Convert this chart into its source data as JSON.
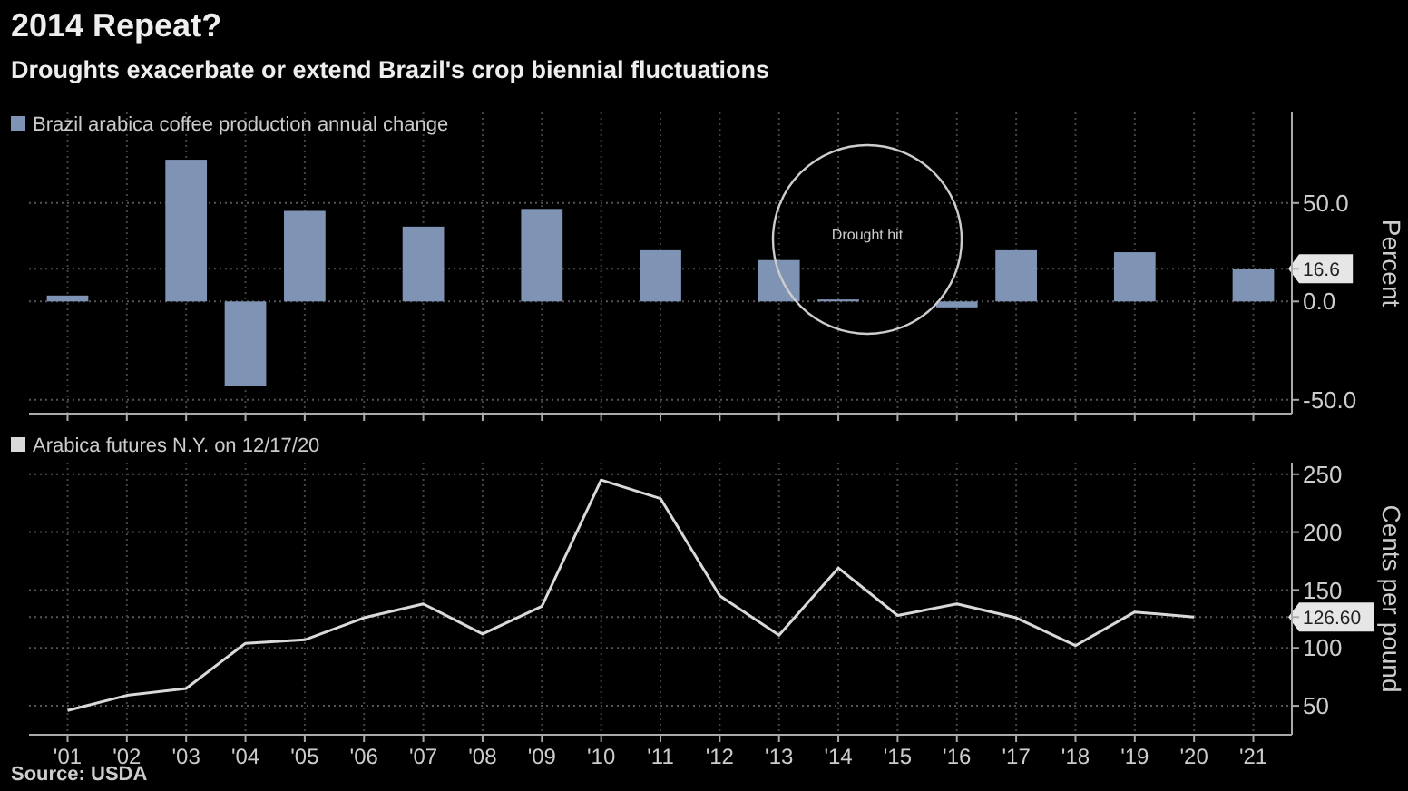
{
  "chart_data": [
    {
      "type": "bar",
      "title": "2014 Repeat?",
      "subtitle": "Droughts exacerbate or extend Brazil's crop biennial fluctuations",
      "categories": [
        null,
        null,
        null,
        null,
        null,
        null,
        null,
        null,
        null,
        null,
        null,
        null,
        null,
        null,
        null,
        null,
        null,
        null,
        null,
        null,
        null
      ],
      "series": [
        {
          "name": "Brazil arabica coffee production annual change",
          "color": "#7f94b5",
          "values": [
            3,
            null,
            72,
            -43,
            46,
            null,
            38,
            null,
            47,
            null,
            26,
            null,
            21,
            1,
            null,
            -3,
            26,
            null,
            25,
            null,
            16.6
          ]
        }
      ],
      "ylim": [
        -57,
        96
      ],
      "yticks": [
        {
          "value": -50,
          "label": "-50.0"
        },
        {
          "value": 0,
          "label": "0.0"
        },
        {
          "value": 50,
          "label": "50.0"
        },
        {
          "value": 16.6,
          "label": "16.6"
        }
      ],
      "ylabel": "Percent",
      "legend": "top left",
      "grid": true,
      "tick_labels": "y",
      "annotations": [
        "Drought hit"
      ]
    },
    {
      "type": "line",
      "categories": [
        "'01",
        "'02",
        "'03",
        "'04",
        "'05",
        "'06",
        "'07",
        "'08",
        "'09",
        "'10",
        "'11",
        "'12",
        "'13",
        "'14",
        "'15",
        "'16",
        "'17",
        "'18",
        "'19",
        "'20",
        "'21"
      ],
      "series": [
        {
          "name": "Arabica futures N.Y. on 12/17/20",
          "color": "#d9d9d9",
          "values": [
            46,
            59,
            65,
            104,
            107,
            126,
            138,
            112,
            136,
            245,
            229,
            145,
            111,
            169,
            128,
            138,
            126,
            102,
            131,
            126.6,
            null
          ]
        }
      ],
      "ylim": [
        25,
        260
      ],
      "yticks": [
        50,
        100,
        150,
        200,
        250,
        {
          "value": 126.6,
          "label": "126.60"
        }
      ],
      "ylabel": "Cents per pound",
      "legend": "top left",
      "grid": true,
      "annotations": [
        "Source: USDA"
      ]
    }
  ]
}
